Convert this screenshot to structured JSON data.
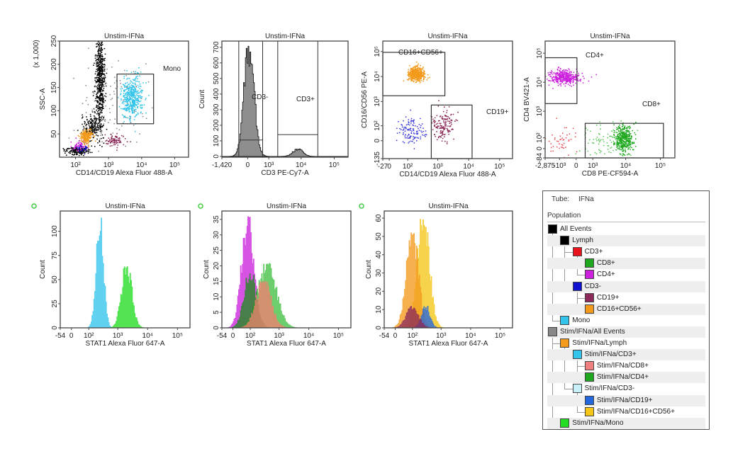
{
  "chart_data": [
    {
      "type": "scatter",
      "title": "Unstim-IFNa",
      "xlabel": "CD14/CD19 Alexa Fluor 488-A",
      "ylabel": "SSC-A",
      "y_multiplier": "(x 1,000)",
      "xscale": "biexponential",
      "yscale": "linear",
      "xlim": [
        30,
        262144
      ],
      "ylim": [
        0,
        250000
      ],
      "xticks": [
        {
          "value": 100,
          "label": "10²"
        },
        {
          "value": 1000,
          "label": "10³"
        },
        {
          "value": 10000,
          "label": "10⁴"
        },
        {
          "value": 100000,
          "label": "10⁵"
        }
      ],
      "yticks": [
        {
          "value": 50000,
          "label": "50"
        },
        {
          "value": 100000,
          "label": "100"
        },
        {
          "value": 150000,
          "label": "150"
        },
        {
          "value": 200000,
          "label": "200"
        },
        {
          "value": 250000,
          "label": "250"
        }
      ],
      "gates": [
        {
          "label": "Mono",
          "x": [
            1800,
            23000
          ],
          "y": [
            72000,
            179000
          ]
        }
      ],
      "populations": [
        {
          "name": "Lymph",
          "color": "#000000",
          "x": 550,
          "y": 165000,
          "x_spread_decades": 0.07,
          "y_spread": 55000,
          "count": 650
        },
        {
          "name": "Lymph",
          "color": "#000000",
          "x": 330,
          "y": 65000,
          "x_spread_decades": 0.14,
          "y_spread": 14000,
          "count": 160
        },
        {
          "name": "All Events",
          "color": "#000000",
          "x": 110,
          "y": 14000,
          "x_spread_decades": 0.2,
          "y_spread": 5000,
          "count": 180
        },
        {
          "name": "All Events",
          "color": "#8a8a8a",
          "x": 900,
          "y": 110000,
          "x_spread_decades": 0.55,
          "y_spread": 55000,
          "count": 110
        },
        {
          "name": "CD4+",
          "color": "#cc22dd",
          "x": 140,
          "y": 25000,
          "x_spread_decades": 0.12,
          "y_spread": 6000,
          "count": 70
        },
        {
          "name": "CD3-",
          "color": "#1010d0",
          "x": 160,
          "y": 19000,
          "x_spread_decades": 0.1,
          "y_spread": 4000,
          "count": 25
        },
        {
          "name": "CD16+CD56+",
          "color": "#f39a1c",
          "x": 220,
          "y": 45000,
          "x_spread_decades": 0.09,
          "y_spread": 7000,
          "count": 220
        },
        {
          "name": "CD19+",
          "color": "#8b2a58",
          "x": 1500,
          "y": 36000,
          "x_spread_decades": 0.14,
          "y_spread": 6000,
          "count": 90
        },
        {
          "name": "Mono",
          "color": "#33c4ec",
          "x": 5000,
          "y": 128000,
          "x_spread_decades": 0.16,
          "y_spread": 22000,
          "count": 450
        }
      ]
    },
    {
      "type": "histogram",
      "title": "Unstim-IFNa",
      "xlabel": "CD3 PE-Cy7-A",
      "ylabel": "Count",
      "xscale": "biexponential",
      "yscale": "linear",
      "xlim": [
        -1420,
        262144
      ],
      "ylim": [
        -5,
        740
      ],
      "xticks": [
        {
          "value": -1420,
          "label": "-1,420"
        },
        {
          "value": 0,
          "label": "0"
        },
        {
          "value": 1000,
          "label": "10³"
        },
        {
          "value": 10000,
          "label": "10⁴"
        },
        {
          "value": 100000,
          "label": "10⁵"
        }
      ],
      "yticks": [
        {
          "value": 0,
          "label": "0"
        },
        {
          "value": 100,
          "label": "100"
        },
        {
          "value": 200,
          "label": "200"
        },
        {
          "value": 300,
          "label": "300"
        },
        {
          "value": 400,
          "label": "400"
        },
        {
          "value": 500,
          "label": "500"
        },
        {
          "value": 600,
          "label": "600"
        },
        {
          "value": 700,
          "label": "700"
        }
      ],
      "gates": [
        {
          "label": "CD3-",
          "x": [
            -320,
            603
          ],
          "count_level": 105
        },
        {
          "label": "CD3+",
          "x": [
            1940,
            32000
          ],
          "count_level": 140
        }
      ],
      "series": [
        {
          "name": "Lymph",
          "color": "#6e6e6e",
          "peak_value": 50,
          "peak_count": 715,
          "spread_decades": 0.15
        },
        {
          "name": "Lymph",
          "color": "#6e6e6e",
          "peak_value": 8000,
          "peak_count": 48,
          "spread_decades": 0.15
        }
      ]
    },
    {
      "type": "scatter",
      "title": "Unstim-IFNa",
      "xlabel": "CD14/CD19 Alexa Fluor 488-A",
      "ylabel": "CD16/CD56 PE-A",
      "xscale": "biexponential",
      "yscale": "biexponential",
      "xlim": [
        -27,
        262144
      ],
      "ylim": [
        -135,
        262144
      ],
      "xticks": [
        {
          "value": -27,
          "label": "-27"
        },
        {
          "value": 0,
          "label": "0"
        },
        {
          "value": 100,
          "label": "10²"
        },
        {
          "value": 1000,
          "label": "10³"
        },
        {
          "value": 10000,
          "label": "10⁴"
        },
        {
          "value": 100000,
          "label": "10⁵"
        }
      ],
      "yticks": [
        {
          "value": -135,
          "label": "-135"
        },
        {
          "value": 0,
          "label": "0"
        },
        {
          "value": 100,
          "label": "10²"
        },
        {
          "value": 1000,
          "label": "10³"
        },
        {
          "value": 10000,
          "label": "10⁴"
        },
        {
          "value": 100000,
          "label": "10⁵"
        }
      ],
      "gates": [
        {
          "label": "CD16+CD56+",
          "x": [
            -27,
            1700
          ],
          "y": [
            1700,
            93000
          ]
        },
        {
          "label": "CD19+",
          "x": [
            617,
            12900
          ],
          "y": [
            -135,
            724
          ]
        }
      ],
      "populations": [
        {
          "name": "CD16+CD56+",
          "color": "#f39a1c",
          "x": 200,
          "y": 12000,
          "x_spread_decades": 0.13,
          "y_spread_decades": 0.13,
          "count": 500
        },
        {
          "name": "CD3-",
          "color": "#3a3ad8",
          "x": 130,
          "y": 60,
          "x_spread_decades": 0.2,
          "y_spread_decades": 0.25,
          "count": 120
        },
        {
          "name": "CD19+",
          "color": "#8b2a58",
          "x": 1500,
          "y": 110,
          "x_spread_decades": 0.2,
          "y_spread_decades": 0.3,
          "count": 150
        }
      ]
    },
    {
      "type": "scatter",
      "title": "Unstim-IFNa",
      "xlabel": "CD8 PE-CF594-A",
      "ylabel": "CD4 BV421-A",
      "xscale": "biexponential",
      "yscale": "biexponential",
      "xlim": [
        -2875,
        262144
      ],
      "ylim": [
        -84,
        262144
      ],
      "xticks": [
        {
          "value": -2875,
          "label": "-2,875"
        },
        {
          "value": -1000,
          "label": "-10³"
        },
        {
          "value": 0,
          "label": "0"
        },
        {
          "value": 1000,
          "label": "10³"
        },
        {
          "value": 10000,
          "label": "10⁴"
        },
        {
          "value": 100000,
          "label": "10⁵"
        }
      ],
      "yticks": [
        {
          "value": -84,
          "label": "-84"
        },
        {
          "value": 0,
          "label": "0"
        },
        {
          "value": 100,
          "label": "10²"
        },
        {
          "value": 1000,
          "label": "10³"
        },
        {
          "value": 10000,
          "label": "10⁴"
        },
        {
          "value": 100000,
          "label": "10⁵"
        }
      ],
      "gates": [
        {
          "label": "CD4+",
          "x": [
            -2875,
            40
          ],
          "y": [
            1840,
            70000
          ]
        },
        {
          "label": "CD8+",
          "x": [
            475,
            123000
          ],
          "y": [
            -84,
            378
          ]
        }
      ],
      "populations": [
        {
          "name": "CD4+",
          "color": "#cc22dd",
          "x": -600,
          "y": 15000,
          "x_spread_decades": 0.22,
          "y_spread_decades": 0.12,
          "count": 420
        },
        {
          "name": "CD8+",
          "color": "#1fa81f",
          "x": 9000,
          "y": 90,
          "x_spread_decades": 0.14,
          "y_spread_decades": 0.22,
          "count": 380
        },
        {
          "name": "CD8+",
          "color": "#5cc85c",
          "x": 2500,
          "y": 70,
          "x_spread_decades": 0.35,
          "y_spread_decades": 0.3,
          "count": 80
        },
        {
          "name": "CD3+",
          "color": "#e8505a",
          "x": -900,
          "y": 60,
          "x_spread_decades": 0.25,
          "y_spread_decades": 0.3,
          "count": 45
        }
      ]
    },
    {
      "type": "histogram",
      "title": "Unstim-IFNa",
      "xlabel": "STAT1 Alexa Fluor 647-A",
      "ylabel": "Count",
      "xscale": "biexponential",
      "yscale": "linear",
      "xlim": [
        -54,
        262144
      ],
      "ylim": [
        0,
        121
      ],
      "xticks": [
        {
          "value": -54,
          "label": "-54"
        },
        {
          "value": 0,
          "label": "0"
        },
        {
          "value": 100,
          "label": "10²"
        },
        {
          "value": 1000,
          "label": "10³"
        },
        {
          "value": 10000,
          "label": "10⁴"
        },
        {
          "value": 100000,
          "label": "10⁵"
        }
      ],
      "yticks": [
        {
          "value": 0,
          "label": "0"
        },
        {
          "value": 25,
          "label": "25"
        },
        {
          "value": 50,
          "label": "50"
        },
        {
          "value": 75,
          "label": "75"
        },
        {
          "value": 100,
          "label": "100"
        }
      ],
      "series": [
        {
          "name": "Mono",
          "color": "#33c4ec",
          "peak_value": 250,
          "peak_count": 118,
          "spread_decades": 0.12
        },
        {
          "name": "Stim/IFNa/Mono",
          "color": "#22dd22",
          "peak_value": 2000,
          "peak_count": 64,
          "spread_decades": 0.17
        }
      ]
    },
    {
      "type": "histogram",
      "title": "Unstim-IFNa",
      "xlabel": "STAT1 Alexa Fluor 647-A",
      "ylabel": "Count",
      "xscale": "biexponential",
      "yscale": "linear",
      "xlim": [
        -54,
        262144
      ],
      "ylim": [
        0,
        37.7
      ],
      "xticks": [
        {
          "value": -54,
          "label": "-54"
        },
        {
          "value": 0,
          "label": "0"
        },
        {
          "value": 100,
          "label": "10²"
        },
        {
          "value": 1000,
          "label": "10³"
        },
        {
          "value": 10000,
          "label": "10⁴"
        },
        {
          "value": 100000,
          "label": "10⁵"
        }
      ],
      "yticks": [
        {
          "value": 0,
          "label": "0"
        },
        {
          "value": 5,
          "label": "5"
        },
        {
          "value": 10,
          "label": "10"
        },
        {
          "value": 15,
          "label": "15"
        },
        {
          "value": 20,
          "label": "20"
        },
        {
          "value": 25,
          "label": "25"
        },
        {
          "value": 30,
          "label": "30"
        },
        {
          "value": 35,
          "label": "35"
        }
      ],
      "series": [
        {
          "name": "CD4+",
          "color": "#cc22dd",
          "peak_value": 80,
          "peak_count": 36,
          "spread_decades": 0.2
        },
        {
          "name": "Stim/IFNa/CD4+",
          "color": "#44c044",
          "peak_value": 400,
          "peak_count": 21,
          "spread_decades": 0.3
        },
        {
          "name": "CD8+",
          "color": "#1f8a1f",
          "peak_value": 100,
          "peak_count": 18,
          "spread_decades": 0.2
        },
        {
          "name": "Stim/IFNa/CD8+",
          "color": "#f08070",
          "peak_value": 300,
          "peak_count": 15,
          "spread_decades": 0.25
        }
      ]
    },
    {
      "type": "histogram",
      "title": "Unstim-IFNa",
      "xlabel": "STAT1 Alexa Fluor 647-A",
      "ylabel": "Count",
      "xscale": "biexponential",
      "yscale": "linear",
      "xlim": [
        -54,
        262144
      ],
      "ylim": [
        0,
        63.9
      ],
      "xticks": [
        {
          "value": -54,
          "label": "-54"
        },
        {
          "value": 0,
          "label": "0"
        },
        {
          "value": 100,
          "label": "10²"
        },
        {
          "value": 1000,
          "label": "10³"
        },
        {
          "value": 10000,
          "label": "10⁴"
        },
        {
          "value": 100000,
          "label": "10⁵"
        }
      ],
      "yticks": [
        {
          "value": 0,
          "label": "0"
        },
        {
          "value": 10,
          "label": "10"
        },
        {
          "value": 20,
          "label": "20"
        },
        {
          "value": 30,
          "label": "30"
        },
        {
          "value": 40,
          "label": "40"
        },
        {
          "value": 50,
          "label": "50"
        },
        {
          "value": 60,
          "label": "60"
        }
      ],
      "series": [
        {
          "name": "Stim/IFNa/CD16+CD56+",
          "color": "#f5c518",
          "peak_value": 250,
          "peak_count": 61,
          "spread_decades": 0.2
        },
        {
          "name": "CD16+CD56+",
          "color": "#f39a1c",
          "peak_value": 100,
          "peak_count": 52,
          "spread_decades": 0.2
        },
        {
          "name": "Stim/IFNa/CD19+",
          "color": "#2266dd",
          "peak_value": 300,
          "peak_count": 12,
          "spread_decades": 0.14
        },
        {
          "name": "CD19+",
          "color": "#8b2a58",
          "peak_value": 100,
          "peak_count": 12,
          "spread_decades": 0.2
        }
      ]
    }
  ],
  "status_icons": {
    "color": "#44cc44",
    "icon": "circle-outline-icon"
  },
  "legend": {
    "tube_label": "Tube:",
    "tube_value": "IFNa",
    "population_header": "Population",
    "items": [
      {
        "label": "All Events",
        "color": "#000000",
        "level": 0
      },
      {
        "label": "Lymph",
        "color": "#000000",
        "level": 1
      },
      {
        "label": "CD3+",
        "color": "#e8141b",
        "level": 2
      },
      {
        "label": "CD8+",
        "color": "#1fa81f",
        "level": 3
      },
      {
        "label": "CD4+",
        "color": "#cc22dd",
        "level": 3
      },
      {
        "label": "CD3-",
        "color": "#1010d0",
        "level": 2
      },
      {
        "label": "CD19+",
        "color": "#8b2a58",
        "level": 3
      },
      {
        "label": "CD16+CD56+",
        "color": "#f39a1c",
        "level": 3
      },
      {
        "label": "Mono",
        "color": "#33c4ec",
        "level": 1
      },
      {
        "label": "Stim/IFNa/All Events",
        "color": "#888888",
        "level": 0
      },
      {
        "label": "Stim/IFNa/Lymph",
        "color": "#f39a1c",
        "level": 1
      },
      {
        "label": "Stim/IFNa/CD3+",
        "color": "#33c4ec",
        "level": 2
      },
      {
        "label": "Stim/IFNa/CD8+",
        "color": "#f08080",
        "level": 3
      },
      {
        "label": "Stim/IFNa/CD4+",
        "color": "#1fa81f",
        "level": 3
      },
      {
        "label": "Stim/IFNa/CD3-",
        "color": "#c8f0f8",
        "level": 2
      },
      {
        "label": "Stim/IFNa/CD19+",
        "color": "#2266dd",
        "level": 3
      },
      {
        "label": "Stim/IFNa/CD16+CD56+",
        "color": "#f5c518",
        "level": 3
      },
      {
        "label": "Stim/IFNa/Mono",
        "color": "#22dd22",
        "level": 1
      }
    ]
  }
}
